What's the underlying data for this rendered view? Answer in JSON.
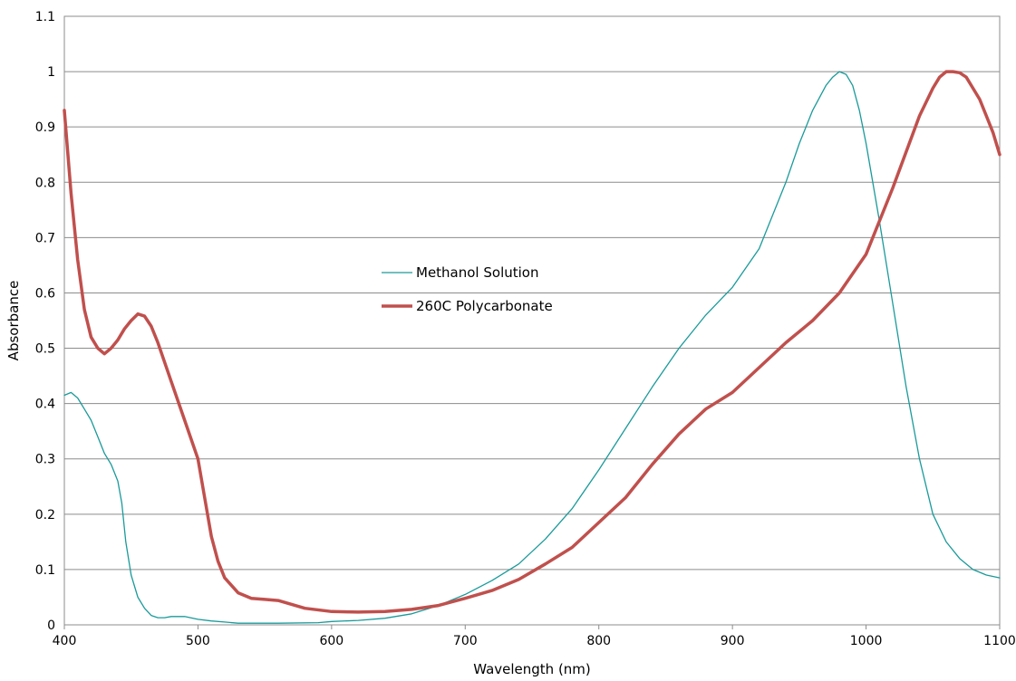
{
  "chart_data": {
    "type": "line",
    "title": "",
    "xlabel": "Wavelength (nm)",
    "ylabel": "Absorbance",
    "xlim": [
      400,
      1100
    ],
    "ylim": [
      0,
      1.1
    ],
    "x_ticks": [
      "400",
      "500",
      "600",
      "700",
      "800",
      "900",
      "1000",
      "1100"
    ],
    "y_ticks": [
      "0",
      "0.1",
      "0.2",
      "0.3",
      "0.4",
      "0.5",
      "0.6",
      "0.7",
      "0.8",
      "0.9",
      "1",
      "1.1"
    ],
    "grid": "horizontal",
    "legend_position": "center",
    "series": [
      {
        "name": "Methanol Solution",
        "color": "#1a9a9a",
        "x": [
          400,
          405,
          410,
          415,
          420,
          425,
          430,
          435,
          440,
          443,
          446,
          450,
          455,
          460,
          465,
          470,
          475,
          480,
          490,
          500,
          510,
          520,
          530,
          560,
          590,
          600,
          620,
          640,
          660,
          680,
          700,
          720,
          740,
          760,
          780,
          800,
          820,
          840,
          860,
          880,
          900,
          920,
          940,
          950,
          960,
          970,
          975,
          980,
          985,
          990,
          995,
          1000,
          1010,
          1020,
          1030,
          1040,
          1050,
          1060,
          1070,
          1080,
          1090,
          1100
        ],
        "y": [
          0.415,
          0.42,
          0.41,
          0.39,
          0.37,
          0.34,
          0.31,
          0.29,
          0.26,
          0.22,
          0.15,
          0.09,
          0.05,
          0.03,
          0.017,
          0.013,
          0.013,
          0.015,
          0.015,
          0.01,
          0.007,
          0.005,
          0.003,
          0.003,
          0.004,
          0.006,
          0.008,
          0.012,
          0.02,
          0.035,
          0.055,
          0.08,
          0.11,
          0.155,
          0.21,
          0.28,
          0.355,
          0.43,
          0.5,
          0.56,
          0.61,
          0.68,
          0.8,
          0.87,
          0.93,
          0.975,
          0.99,
          1.0,
          0.995,
          0.975,
          0.93,
          0.87,
          0.73,
          0.58,
          0.43,
          0.3,
          0.2,
          0.15,
          0.12,
          0.1,
          0.09,
          0.085
        ]
      },
      {
        "name": "260C Polycarbonate",
        "color": "#c0504d",
        "x": [
          400,
          405,
          410,
          415,
          420,
          425,
          430,
          435,
          440,
          445,
          450,
          455,
          460,
          465,
          470,
          480,
          490,
          500,
          505,
          510,
          515,
          520,
          530,
          540,
          550,
          560,
          580,
          600,
          620,
          640,
          660,
          680,
          700,
          720,
          740,
          760,
          780,
          800,
          820,
          840,
          860,
          880,
          900,
          920,
          940,
          960,
          980,
          1000,
          1020,
          1040,
          1050,
          1055,
          1060,
          1065,
          1070,
          1075,
          1080,
          1085,
          1090,
          1095,
          1100
        ],
        "y": [
          0.93,
          0.78,
          0.66,
          0.57,
          0.52,
          0.5,
          0.49,
          0.5,
          0.515,
          0.535,
          0.55,
          0.562,
          0.558,
          0.54,
          0.51,
          0.44,
          0.37,
          0.3,
          0.23,
          0.16,
          0.115,
          0.085,
          0.058,
          0.048,
          0.046,
          0.044,
          0.03,
          0.024,
          0.023,
          0.024,
          0.028,
          0.035,
          0.048,
          0.062,
          0.082,
          0.11,
          0.14,
          0.185,
          0.23,
          0.29,
          0.345,
          0.39,
          0.42,
          0.465,
          0.51,
          0.55,
          0.6,
          0.67,
          0.79,
          0.92,
          0.97,
          0.99,
          1.0,
          1.0,
          0.998,
          0.99,
          0.97,
          0.95,
          0.92,
          0.89,
          0.85
        ]
      }
    ]
  }
}
